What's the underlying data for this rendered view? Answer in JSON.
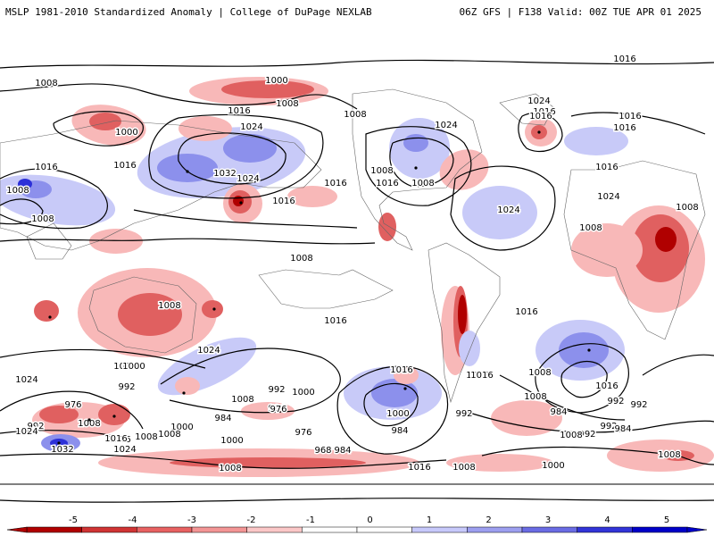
{
  "header": {
    "title": "MSLP 1981-2010 Standardized Anomaly | College of DuPage NEXLAB",
    "run_info": "06Z GFS | F138 Valid: 00Z TUE APR 01 2025"
  },
  "contour_labels": [
    "1016",
    "1008",
    "1000",
    "1008",
    "1016",
    "1008",
    "1024",
    "1000",
    "1024",
    "1016",
    "1016",
    "1016",
    "1024",
    "1032",
    "1024",
    "1016",
    "1016",
    "1024",
    "1008",
    "1008",
    "1016",
    "1024",
    "1008",
    "1008",
    "1016",
    "1016",
    "1016",
    "1016",
    "1008",
    "1008",
    "1008",
    "1016",
    "1016",
    "1008",
    "1000",
    "1024",
    "1008",
    "1016",
    "1000",
    "992",
    "992",
    "1000",
    "976",
    "984",
    "1016",
    "1008",
    "992",
    "1032",
    "1016",
    "1024",
    "1008",
    "1016",
    "976",
    "1000",
    "984",
    "1008",
    "1000",
    "992",
    "968",
    "976",
    "984",
    "1008",
    "1016",
    "992",
    "984",
    "992",
    "1016",
    "1008",
    "1024",
    "1000",
    "984",
    "992",
    "1008",
    "992",
    "984",
    "1008",
    "1000",
    "1008",
    "1016",
    "1008",
    "1024"
  ],
  "colorbar": {
    "ticks": [
      "-5",
      "-4",
      "-3",
      "-2",
      "-1",
      "0",
      "1",
      "2",
      "3",
      "4",
      "5"
    ],
    "colors": [
      "#b00000",
      "#d03434",
      "#e86262",
      "#f39595",
      "#fbc7c7",
      "#ffffff",
      "#ffffff",
      "#c7c9fb",
      "#9d9ff0",
      "#6a6ce4",
      "#3234d8",
      "#0000c8"
    ]
  },
  "anomaly_colors": {
    "neg_strong": "#b00000",
    "neg_mid": "#e06060",
    "neg_light": "#f8b8b8",
    "pos_light": "#c8caf8",
    "pos_mid": "#8c90ec",
    "pos_strong": "#2c30d8"
  }
}
